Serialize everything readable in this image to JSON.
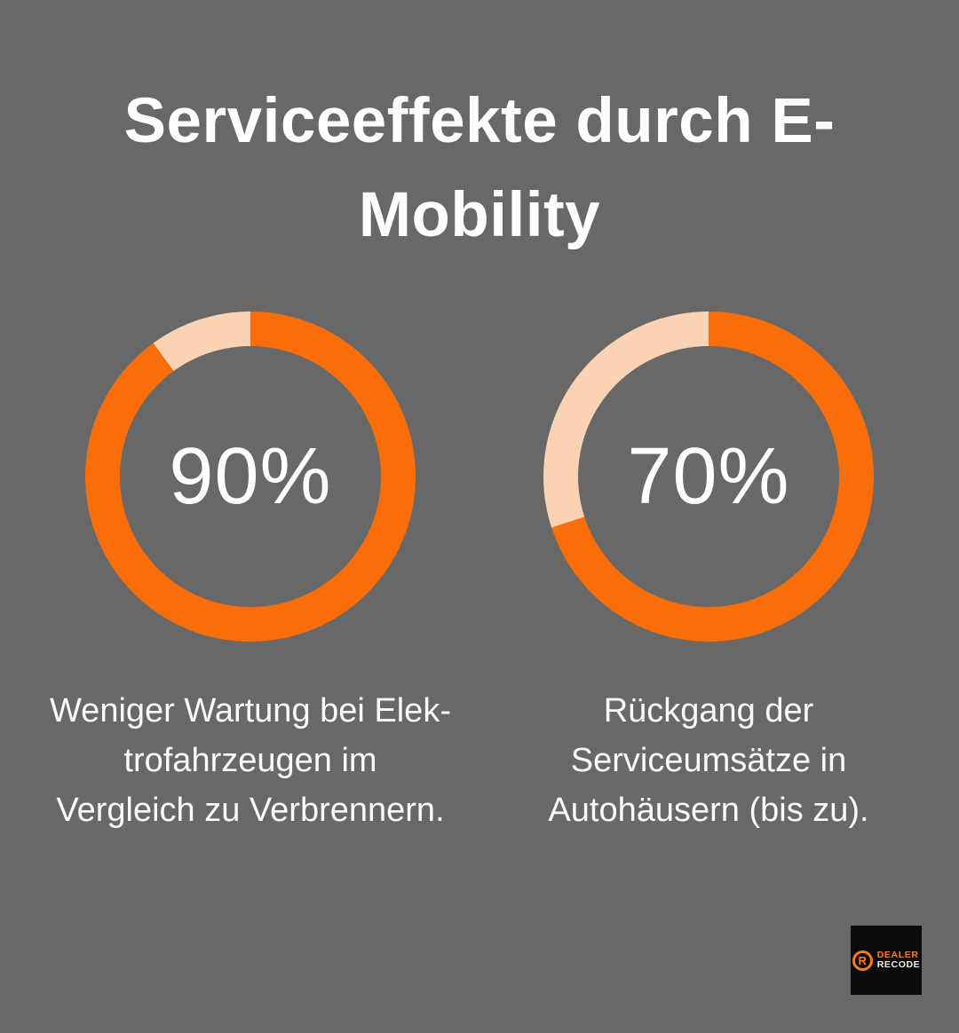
{
  "page": {
    "background_color": "#686868",
    "accent_color": "#fa6e0a",
    "accent_light_color": "#fcd3b2",
    "text_color": "#ffffff"
  },
  "header": {
    "title": "Serviceeffekte durch E-Mobility",
    "title_lines": [
      "Serviceeffekte durch E-",
      "Mobility"
    ]
  },
  "chart_data": [
    {
      "type": "pie",
      "variant": "donut",
      "label": "90%",
      "value_pct": 90,
      "remainder_pct": 10,
      "start_angle_deg": 0,
      "direction": "clockwise",
      "colors": {
        "value": "#fa6e0a",
        "remainder": "#fcd3b2"
      },
      "center_label_color": "#ffffff",
      "caption": "Weniger Wartung bei Elektrofahrzeugen im Vergleich zu Verbrennern.",
      "caption_lines": [
        "Weniger Wartung bei Elek-",
        "trofahrzeugen im",
        "Vergleich zu Verbrennern."
      ]
    },
    {
      "type": "pie",
      "variant": "donut",
      "label": "70%",
      "value_pct": 70,
      "remainder_pct": 30,
      "start_angle_deg": 0,
      "direction": "clockwise",
      "colors": {
        "value": "#fa6e0a",
        "remainder": "#fcd3b2"
      },
      "center_label_color": "#ffffff",
      "caption": "Rückgang der Serviceumsätze in Autohäusern (bis zu).",
      "caption_lines": [
        "Rückgang der",
        "Serviceumsätze in",
        "Autohäusern (bis zu)."
      ]
    }
  ],
  "logo": {
    "icon_letter": "R",
    "line1": "DEALER",
    "line2": "RECODE",
    "icon_color": "#f9791c",
    "background_color": "#0b0b0b"
  }
}
